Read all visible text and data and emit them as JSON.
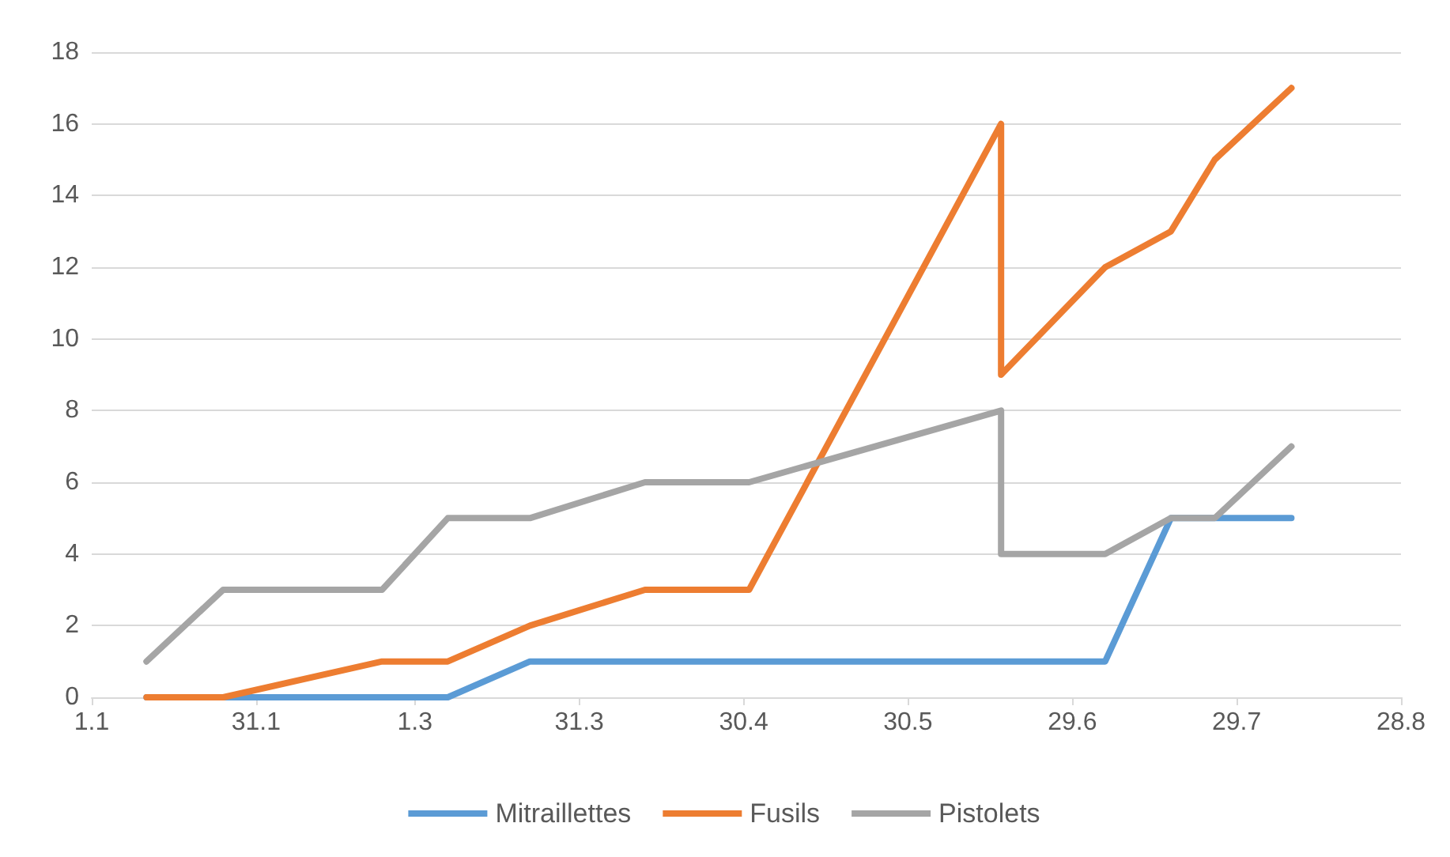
{
  "chart_data": {
    "type": "line",
    "x": [
      "--01-11",
      "--01-25",
      "--02-23",
      "--03-07",
      "--03-22",
      "--04-12",
      "--05-01",
      "--06-16",
      "--06-16",
      "--07-05",
      "--07-17",
      "--07-25",
      "--08-08"
    ],
    "series": [
      {
        "name": "Mitraillettes",
        "color": "#5b9bd5",
        "values": [
          0,
          0,
          0,
          0,
          1,
          1,
          1,
          1,
          1,
          1,
          5,
          5,
          5
        ]
      },
      {
        "name": "Fusils",
        "color": "#ed7d31",
        "values": [
          0,
          0,
          1,
          1,
          2,
          3,
          3,
          16,
          9,
          12,
          13,
          15,
          17
        ]
      },
      {
        "name": "Pistolets",
        "color": "#a5a5a5",
        "values": [
          1,
          3,
          3,
          5,
          5,
          6,
          6,
          8,
          4,
          4,
          5,
          5,
          7
        ]
      }
    ],
    "xlim": [
      "--01-01",
      "--08-28"
    ],
    "xticks": [
      {
        "value": "--01-01",
        "label": "1.1"
      },
      {
        "value": "--01-31",
        "label": "31.1"
      },
      {
        "value": "--03-01",
        "label": "1.3"
      },
      {
        "value": "--03-31",
        "label": "31.3"
      },
      {
        "value": "--04-30",
        "label": "30.4"
      },
      {
        "value": "--05-30",
        "label": "30.5"
      },
      {
        "value": "--06-29",
        "label": "29.6"
      },
      {
        "value": "--07-29",
        "label": "29.7"
      },
      {
        "value": "--08-28",
        "label": "28.8"
      }
    ],
    "ylim": [
      0,
      18
    ],
    "yticks": [
      0,
      2,
      4,
      6,
      8,
      10,
      12,
      14,
      16,
      18
    ],
    "grid": "y",
    "legend": "bottom",
    "marker": "none",
    "line_style": "solid"
  }
}
